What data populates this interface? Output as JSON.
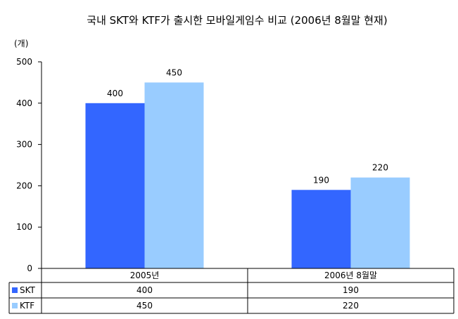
{
  "chart_data": {
    "type": "bar",
    "title": "국내 SKT와 KTF가 출시한 모바일게임수 비교 (2006년 8월말 현재)",
    "unit_label": "(개)",
    "categories": [
      "2005년",
      "2006년 8월말"
    ],
    "series": [
      {
        "name": "SKT",
        "values": [
          400,
          190
        ],
        "color": "#3366ff"
      },
      {
        "name": "KTF",
        "values": [
          450,
          220
        ],
        "color": "#99ccff"
      }
    ],
    "ylim": [
      0,
      500
    ],
    "yticks": [
      0,
      100,
      200,
      300,
      400,
      500
    ],
    "data_labels": true,
    "legend": "data-table",
    "grid": false
  }
}
